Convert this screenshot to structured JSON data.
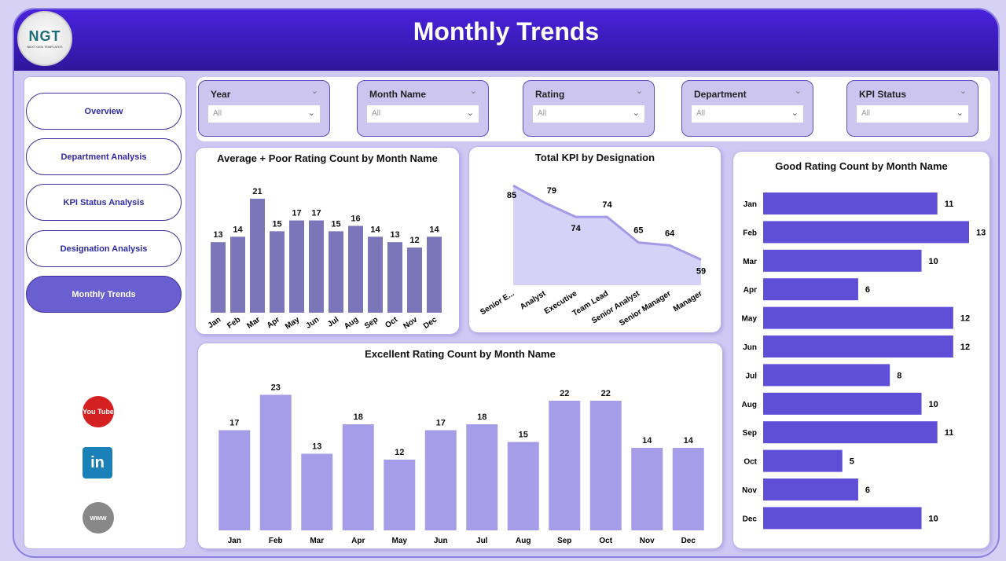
{
  "header": {
    "title": "Monthly Trends",
    "logo_text": "NGT",
    "logo_sub": "NEXT GEN TEMPLATES"
  },
  "sidebar": {
    "items": [
      {
        "label": "Overview"
      },
      {
        "label": "Department Analysis"
      },
      {
        "label": "KPI Status Analysis"
      },
      {
        "label": "Designation Analysis"
      },
      {
        "label": "Monthly Trends",
        "active": true
      }
    ],
    "social": [
      {
        "icon": "youtube-icon",
        "label": "You Tube"
      },
      {
        "icon": "linkedin-icon",
        "label": "in"
      },
      {
        "icon": "website-icon",
        "label": "www"
      }
    ]
  },
  "filters": [
    {
      "label": "Year",
      "value": "All"
    },
    {
      "label": "Month Name",
      "value": "All"
    },
    {
      "label": "Rating",
      "value": "All"
    },
    {
      "label": "Department",
      "value": "All"
    },
    {
      "label": "KPI Status",
      "value": "All"
    }
  ],
  "colors": {
    "header": "#3a1cc0",
    "avg_poor": "#7b76b9",
    "excellent": "#a69de8",
    "good": "#5e4fd6",
    "area": "#d6d1f6",
    "line": "#a49ae6"
  },
  "chart_data": [
    {
      "id": "avgpoor",
      "type": "bar",
      "title": "Average + Poor Rating Count by Month Name",
      "categories": [
        "Jan",
        "Feb",
        "Mar",
        "Apr",
        "May",
        "Jun",
        "Jul",
        "Aug",
        "Sep",
        "Oct",
        "Nov",
        "Dec"
      ],
      "values": [
        13,
        14,
        21,
        15,
        17,
        17,
        15,
        16,
        14,
        13,
        12,
        14
      ],
      "ylim": [
        0,
        22
      ]
    },
    {
      "id": "kpi",
      "type": "area",
      "title": "Total KPI by Designation",
      "categories": [
        "Senior E...",
        "Analyst",
        "Executive",
        "Team Lead",
        "Senior Analyst",
        "Senior Manager",
        "Manager"
      ],
      "values": [
        85,
        79,
        74,
        74,
        65,
        64,
        59
      ],
      "ylim": [
        50,
        87
      ]
    },
    {
      "id": "excellent",
      "type": "bar",
      "title": "Excellent Rating Count by Month Name",
      "categories": [
        "Jan",
        "Feb",
        "Mar",
        "Apr",
        "May",
        "Jun",
        "Jul",
        "Aug",
        "Sep",
        "Oct",
        "Nov",
        "Dec"
      ],
      "values": [
        17,
        23,
        13,
        18,
        12,
        17,
        18,
        15,
        22,
        22,
        14,
        14
      ],
      "ylim": [
        0,
        24
      ]
    },
    {
      "id": "good",
      "type": "bar-horizontal",
      "title": "Good Rating Count by Month Name",
      "categories": [
        "Jan",
        "Feb",
        "Mar",
        "Apr",
        "May",
        "Jun",
        "Jul",
        "Aug",
        "Sep",
        "Oct",
        "Nov",
        "Dec"
      ],
      "values": [
        11,
        13,
        10,
        6,
        12,
        12,
        8,
        10,
        11,
        5,
        6,
        10
      ],
      "xlim": [
        0,
        13
      ]
    }
  ]
}
